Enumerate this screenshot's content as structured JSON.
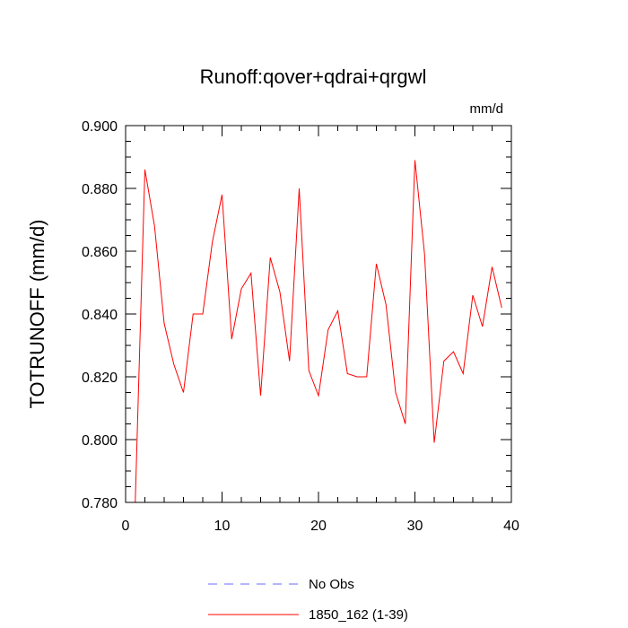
{
  "chart_data": {
    "type": "line",
    "title": "Runoff:qover+qdrai+qrgwl",
    "units_label": "mm/d",
    "xlabel": "",
    "ylabel": "TOTRUNOFF  (mm/d)",
    "xlim": [
      0,
      40
    ],
    "ylim": [
      0.78,
      0.9
    ],
    "x_ticks": [
      0,
      10,
      20,
      30,
      40
    ],
    "x_tick_labels": [
      "0",
      "10",
      "20",
      "30",
      "40"
    ],
    "y_ticks": [
      0.78,
      0.8,
      0.82,
      0.84,
      0.86,
      0.88,
      0.9
    ],
    "y_tick_labels": [
      "0.780",
      "0.800",
      "0.820",
      "0.840",
      "0.860",
      "0.880",
      "0.900"
    ],
    "grid": false,
    "legend_position": "bottom",
    "series": [
      {
        "name": "No Obs",
        "color": "#6a6aff",
        "dashed": true,
        "x": [],
        "values": []
      },
      {
        "name": "1850_162 (1-39)",
        "color": "#ff0000",
        "dashed": false,
        "x": [
          1,
          2,
          3,
          4,
          5,
          6,
          7,
          8,
          9,
          10,
          11,
          12,
          13,
          14,
          15,
          16,
          17,
          18,
          19,
          20,
          21,
          22,
          23,
          24,
          25,
          26,
          27,
          28,
          29,
          30,
          31,
          32,
          33,
          34,
          35,
          36,
          37,
          38,
          39
        ],
        "values": [
          0.78,
          0.886,
          0.868,
          0.837,
          0.824,
          0.815,
          0.84,
          0.84,
          0.863,
          0.878,
          0.832,
          0.848,
          0.853,
          0.814,
          0.858,
          0.847,
          0.825,
          0.88,
          0.822,
          0.814,
          0.835,
          0.841,
          0.821,
          0.82,
          0.82,
          0.856,
          0.843,
          0.815,
          0.805,
          0.889,
          0.859,
          0.799,
          0.825,
          0.828,
          0.821,
          0.846,
          0.836,
          0.855,
          0.842
        ]
      }
    ]
  }
}
